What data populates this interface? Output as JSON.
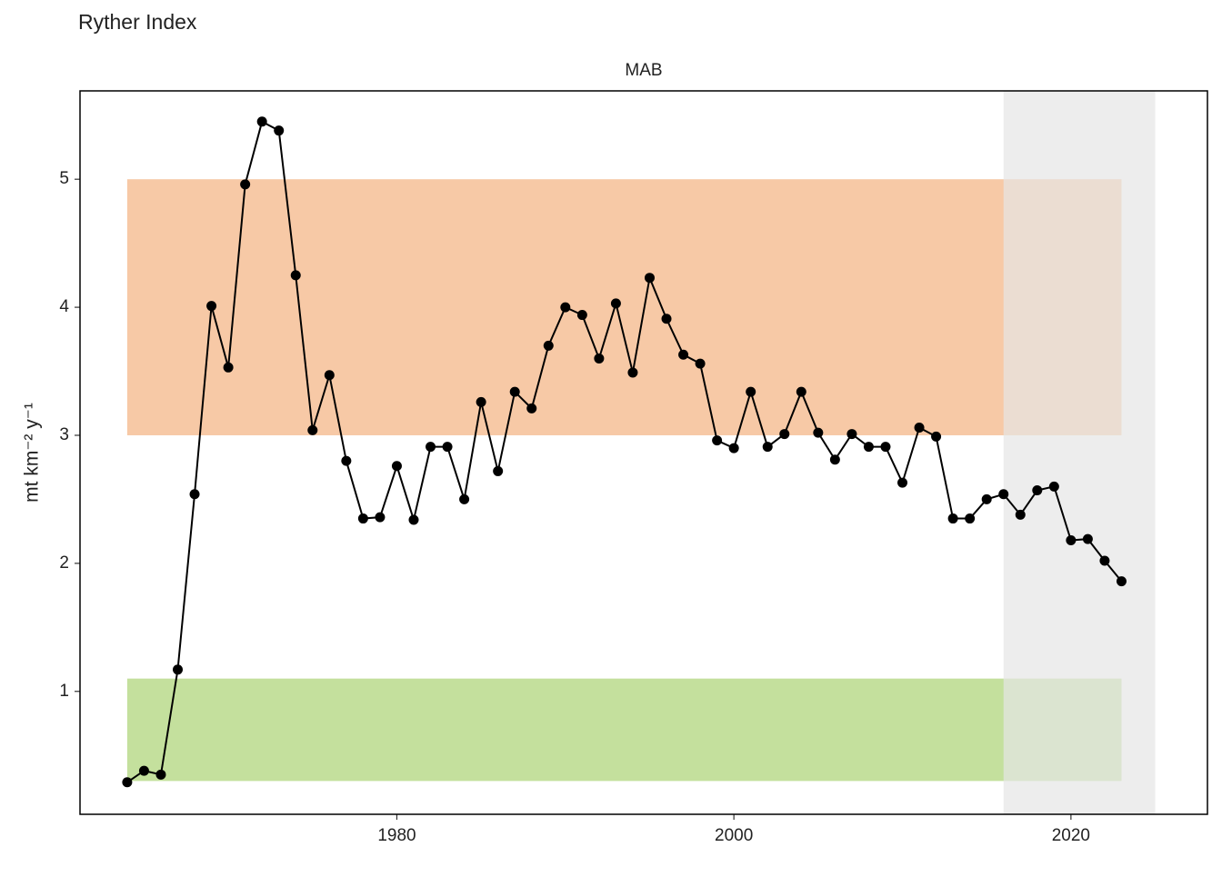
{
  "chart_data": {
    "type": "line",
    "title": "Ryther Index",
    "panel_label": "MAB",
    "y_label": "mt km⁻² y⁻¹",
    "x": [
      1964,
      1965,
      1966,
      1967,
      1968,
      1969,
      1970,
      1971,
      1972,
      1973,
      1974,
      1975,
      1976,
      1977,
      1978,
      1979,
      1980,
      1981,
      1982,
      1983,
      1984,
      1985,
      1986,
      1987,
      1988,
      1989,
      1990,
      1991,
      1992,
      1993,
      1994,
      1995,
      1996,
      1997,
      1998,
      1999,
      2000,
      2001,
      2002,
      2003,
      2004,
      2005,
      2006,
      2007,
      2008,
      2009,
      2010,
      2011,
      2012,
      2013,
      2014,
      2015,
      2016,
      2017,
      2018,
      2019,
      2020,
      2021,
      2022,
      2023
    ],
    "series": [
      {
        "color": "#000000",
        "values": [
          0.29,
          0.38,
          0.35,
          1.17,
          2.54,
          4.01,
          3.53,
          4.96,
          5.45,
          5.38,
          4.25,
          3.04,
          3.47,
          2.8,
          2.35,
          2.36,
          2.76,
          2.34,
          2.91,
          2.91,
          2.5,
          3.26,
          2.72,
          3.34,
          3.21,
          3.7,
          4.0,
          3.94,
          3.6,
          4.03,
          3.49,
          4.23,
          3.91,
          3.63,
          3.56,
          2.96,
          2.9,
          3.34,
          2.91,
          3.01,
          3.34,
          3.02,
          2.81,
          3.01,
          2.91,
          2.91,
          2.63,
          3.06,
          2.99,
          2.35,
          2.35,
          2.5,
          2.54,
          2.38,
          2.57,
          2.6,
          2.18,
          2.19,
          2.02,
          1.86
        ]
      }
    ],
    "bands": [
      {
        "xmin": 1964,
        "xmax": 2023,
        "ymin": 3,
        "ymax": 5,
        "color": "#f1a56a"
      },
      {
        "xmin": 1964,
        "xmax": 2023,
        "ymin": 0.3,
        "ymax": 1.1,
        "color": "#9ccb5c"
      }
    ],
    "shade": {
      "xmin": 2016,
      "xmax": 2025,
      "color": "#e6e6e6"
    },
    "xlim": [
      1961.2,
      2028.1
    ],
    "ylim": [
      0.04,
      5.69
    ],
    "xticks": [
      1980,
      2000,
      2020
    ],
    "yticks": [
      1,
      2,
      3,
      4,
      5
    ],
    "grid": false
  }
}
